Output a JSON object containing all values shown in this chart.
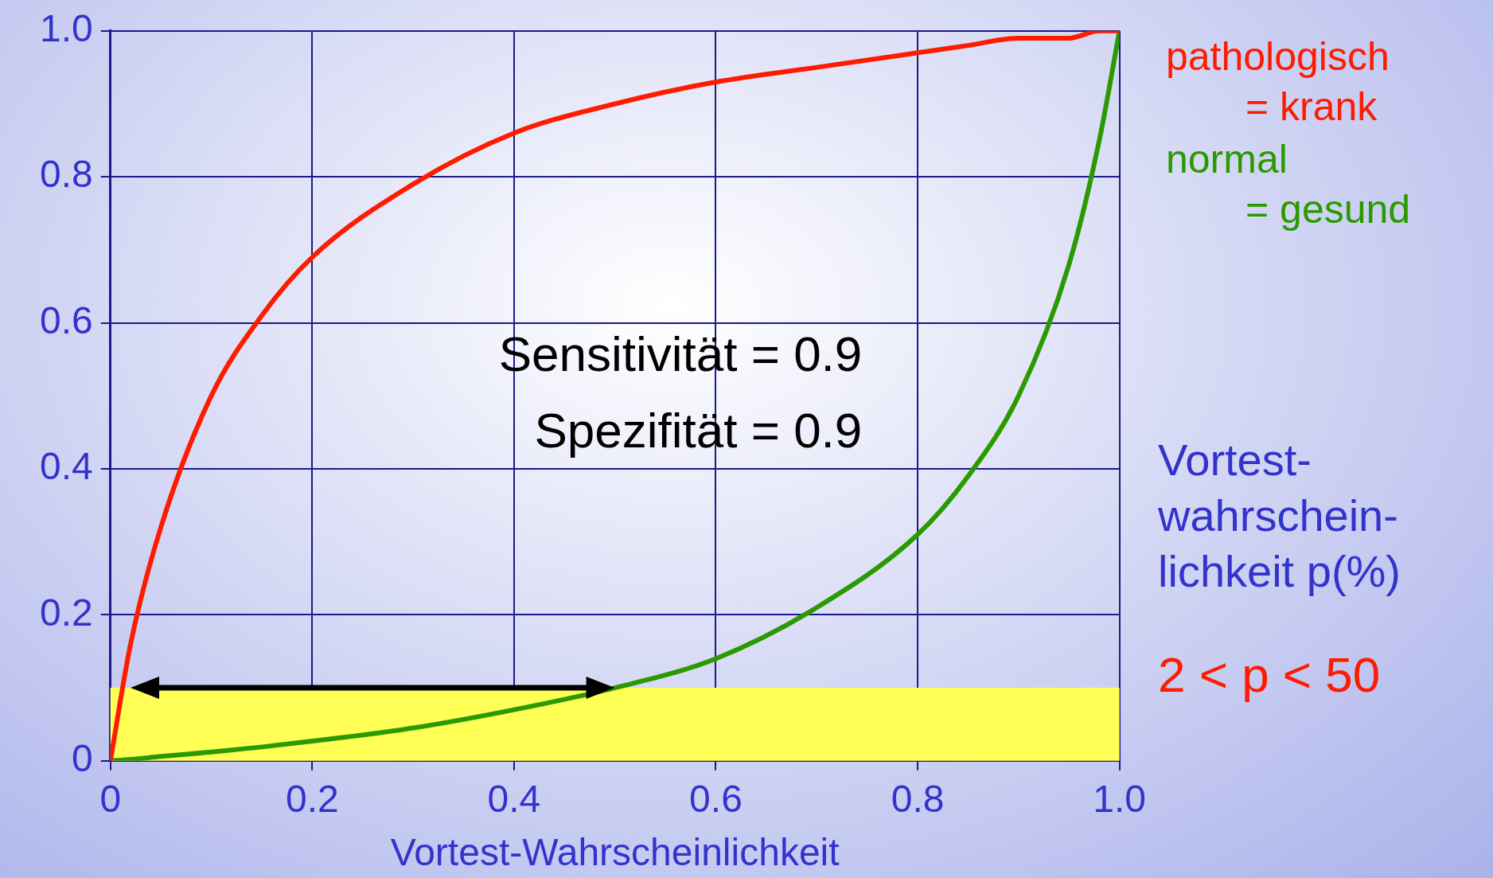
{
  "chart_data": {
    "type": "line",
    "xlabel": "Vortest-Wahrscheinlichkeit",
    "xlim": [
      0,
      1
    ],
    "xticks": [
      0,
      0.2,
      0.4,
      0.6,
      0.8,
      {
        "value": 1,
        "label": "1.0"
      }
    ],
    "ylim": [
      0,
      1
    ],
    "yticks": [
      0,
      0.2,
      0.4,
      0.6,
      0.8,
      {
        "value": 1,
        "label": "1.0"
      }
    ],
    "x": [
      0,
      0.02,
      0.05,
      0.1,
      0.15,
      0.2,
      0.3,
      0.4,
      0.5,
      0.6,
      0.7,
      0.8,
      0.85,
      0.9,
      0.95,
      0.98,
      1
    ],
    "series": [
      {
        "name": "pathologisch = krank",
        "color": "#ff1a00",
        "values": [
          0,
          0.16,
          0.32,
          0.5,
          0.61,
          0.69,
          0.79,
          0.86,
          0.9,
          0.93,
          0.95,
          0.97,
          0.98,
          0.99,
          0.99,
          1.0,
          1
        ]
      },
      {
        "name": "normal = gesund",
        "color": "#2a9a00",
        "values": [
          0,
          0.002,
          0.006,
          0.012,
          0.019,
          0.027,
          0.045,
          0.07,
          0.1,
          0.14,
          0.21,
          0.31,
          0.39,
          0.5,
          0.68,
          0.85,
          1
        ]
      }
    ],
    "bands": [
      {
        "axis": "y",
        "from": 0,
        "to": 0.1,
        "color": "#ffff55"
      }
    ],
    "annotations": [
      "Sensitivität = 0.9",
      "Spezifität = 0.9",
      "Vortest-wahrschein-lichkeit p(%)",
      "2 < p < 50"
    ],
    "grid": true,
    "legend": "top right",
    "marker": "none",
    "line_style": "solid"
  }
}
